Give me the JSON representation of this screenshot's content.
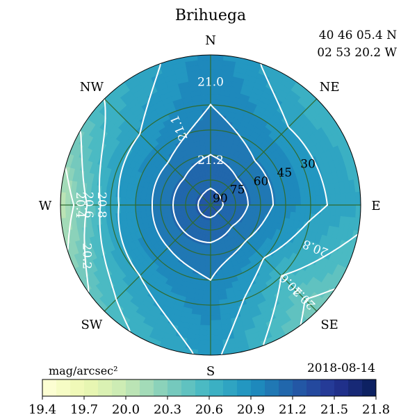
{
  "chart_data": {
    "type": "polar-contour",
    "title": "Brihuega",
    "coords": {
      "lat": "40 46 05.4 N",
      "lon": "02 53 20.2 W"
    },
    "date": "2018-08-14",
    "directions": [
      "N",
      "NE",
      "E",
      "SE",
      "S",
      "SW",
      "W",
      "NW"
    ],
    "altitude_rings": [
      30,
      45,
      60,
      75,
      90
    ],
    "colorbar": {
      "label": "mag/arcsec²",
      "min": 19.4,
      "max": 21.8,
      "step": 0.1,
      "ticks": [
        19.4,
        19.7,
        20.0,
        20.3,
        20.6,
        20.9,
        21.2,
        21.5,
        21.8
      ],
      "tick_labels": [
        "19.4",
        "19.7",
        "20.0",
        "20.3",
        "20.6",
        "20.9",
        "21.2",
        "21.5",
        "21.8"
      ],
      "colormap": "YlGnBu"
    },
    "zenith_value": 21.25,
    "sky_brightness_by_direction": [
      {
        "direction": "N",
        "values_at_altitude": {
          "0": 20.95,
          "30": 21.0,
          "60": 21.1,
          "90": 21.25
        }
      },
      {
        "direction": "NE",
        "values_at_altitude": {
          "0": 20.6,
          "30": 20.85,
          "60": 21.05,
          "90": 21.25
        }
      },
      {
        "direction": "E",
        "values_at_altitude": {
          "0": 20.7,
          "30": 20.85,
          "60": 21.05,
          "90": 21.25
        }
      },
      {
        "direction": "SE",
        "values_at_altitude": {
          "0": 20.3,
          "30": 20.6,
          "60": 21.0,
          "90": 21.25
        }
      },
      {
        "direction": "S",
        "values_at_altitude": {
          "0": 20.85,
          "30": 20.95,
          "60": 21.05,
          "90": 21.25
        }
      },
      {
        "direction": "SW",
        "values_at_altitude": {
          "0": 20.5,
          "30": 20.8,
          "60": 21.05,
          "90": 21.25
        }
      },
      {
        "direction": "W",
        "values_at_altitude": {
          "0": 20.0,
          "30": 20.75,
          "60": 21.05,
          "90": 21.25
        }
      },
      {
        "direction": "NW",
        "values_at_altitude": {
          "0": 20.6,
          "30": 20.8,
          "60": 21.05,
          "90": 21.25
        }
      }
    ],
    "contour_levels": [
      {
        "level": 20.2,
        "label": "20.2"
      },
      {
        "level": 20.4,
        "label": "20.4"
      },
      {
        "level": 20.6,
        "label": "20.6"
      },
      {
        "level": 20.8,
        "label": "20.8"
      },
      {
        "level": 21.0,
        "label": "21.0"
      },
      {
        "level": 21.1,
        "label": "21.1"
      },
      {
        "level": 21.2,
        "label": "21.2"
      }
    ],
    "contour_labels": [
      {
        "text": "21.0",
        "direction": "N",
        "altitude": 16
      },
      {
        "text": "21.1",
        "direction": "NNW",
        "altitude": 40
      },
      {
        "text": "21.2",
        "direction": "N",
        "altitude": 63
      },
      {
        "text": "20.8",
        "direction": "W",
        "altitude": 25
      },
      {
        "text": "20.6",
        "direction": "W",
        "altitude": 17
      },
      {
        "text": "20.4",
        "direction": "W",
        "altitude": 12
      },
      {
        "text": "20.2",
        "direction": "WSW",
        "altitude": 10
      },
      {
        "text": "20.8",
        "direction": "ESE",
        "altitude": 22
      },
      {
        "text": "20.6",
        "direction": "SE",
        "altitude": 22
      },
      {
        "text": "20.4",
        "direction": "SE",
        "altitude": 11
      }
    ]
  }
}
